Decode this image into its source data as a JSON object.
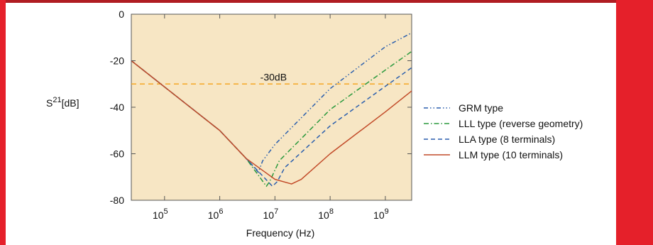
{
  "chart_data": {
    "type": "line",
    "xlabel": "Frequency (Hz)",
    "ylabel": {
      "base": "S",
      "sup": "21",
      "unit": "[dB]"
    },
    "x_scale": "log",
    "xlim": [
      25000,
      3000000000
    ],
    "ylim": [
      -80,
      0
    ],
    "x_ticks": [
      {
        "value": 100000,
        "base": "10",
        "exp": "5"
      },
      {
        "value": 1000000,
        "base": "10",
        "exp": "6"
      },
      {
        "value": 10000000,
        "base": "10",
        "exp": "7"
      },
      {
        "value": 100000000,
        "base": "10",
        "exp": "8"
      },
      {
        "value": 1000000000,
        "base": "10",
        "exp": "9"
      }
    ],
    "y_ticks": [
      0,
      -20,
      -40,
      -60,
      -80
    ],
    "y_tick_labels": [
      "0",
      "-20",
      "-40",
      "-60",
      "-80"
    ],
    "reference_line": {
      "y": -30,
      "label": "-30dB",
      "color": "#f5a623"
    },
    "plot_background": "#f7e6c4",
    "grid": false,
    "legend_position": "right",
    "series": [
      {
        "name": "GRM type",
        "color": "#2b5fad",
        "dash": "6,3,1.5,3,1.5,3",
        "points": [
          [
            25000,
            -20
          ],
          [
            1000000,
            -50
          ],
          [
            3000000,
            -62
          ],
          [
            5000000,
            -68
          ],
          [
            6000000,
            -63
          ],
          [
            10000000,
            -56
          ],
          [
            100000000,
            -32
          ],
          [
            1000000000,
            -14
          ],
          [
            3000000000,
            -8
          ]
        ]
      },
      {
        "name": "LLL type (reverse geometry)",
        "color": "#2b9a3e",
        "dash": "7,3,1.5,3",
        "points": [
          [
            25000,
            -20
          ],
          [
            1000000,
            -50
          ],
          [
            3000000,
            -62
          ],
          [
            7000000,
            -74
          ],
          [
            8000000,
            -72
          ],
          [
            12000000,
            -63
          ],
          [
            100000000,
            -41
          ],
          [
            1000000000,
            -24
          ],
          [
            3000000000,
            -16
          ]
        ]
      },
      {
        "name": "LLA type (8 terminals)",
        "color": "#2b5fad",
        "dash": "6,4",
        "points": [
          [
            25000,
            -20
          ],
          [
            1000000,
            -50
          ],
          [
            3000000,
            -62
          ],
          [
            9000000,
            -74
          ],
          [
            11000000,
            -72
          ],
          [
            15000000,
            -66
          ],
          [
            100000000,
            -48
          ],
          [
            1000000000,
            -31
          ],
          [
            3000000000,
            -23
          ]
        ]
      },
      {
        "name": "LLM type (10 terminals)",
        "color": "#c24a28",
        "dash": "",
        "points": [
          [
            25000,
            -20
          ],
          [
            1000000,
            -50
          ],
          [
            3000000,
            -62
          ],
          [
            10000000,
            -71
          ],
          [
            20000000,
            -73
          ],
          [
            30000000,
            -71
          ],
          [
            100000000,
            -60
          ],
          [
            1000000000,
            -42
          ],
          [
            3000000000,
            -33
          ]
        ]
      }
    ]
  }
}
